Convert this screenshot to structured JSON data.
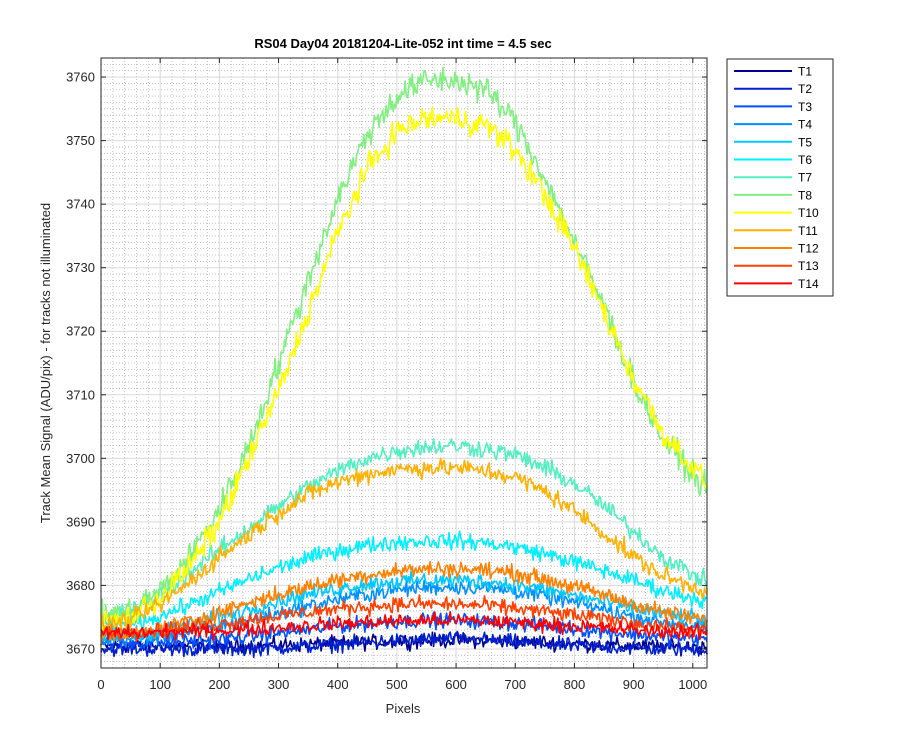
{
  "chart_data": {
    "type": "line",
    "title": "RS04 Day04 20181204-Lite-052 int time = 4.5 sec",
    "xlabel": "Pixels",
    "ylabel": "Track Mean Signal (ADU/pix) - for tracks not illuminated",
    "xlim": [
      0,
      1024
    ],
    "ylim": [
      3667,
      3763
    ],
    "xticks": [
      0,
      100,
      200,
      300,
      400,
      500,
      600,
      700,
      800,
      900,
      1000
    ],
    "yticks": [
      3670,
      3680,
      3690,
      3700,
      3710,
      3720,
      3730,
      3740,
      3750,
      3760
    ],
    "grid": "major and minor",
    "legend_location": "outside-right",
    "x": [
      0,
      50,
      100,
      150,
      200,
      250,
      300,
      350,
      400,
      450,
      500,
      550,
      600,
      650,
      700,
      750,
      800,
      850,
      900,
      950,
      1024
    ],
    "series": [
      {
        "name": "T1",
        "color": "#00008f",
        "values": [
          3670.5,
          3670.5,
          3670.5,
          3670.5,
          3670.5,
          3670.5,
          3670.6,
          3670.7,
          3670.9,
          3671.0,
          3671.2,
          3671.3,
          3671.4,
          3671.3,
          3671.1,
          3671.0,
          3670.8,
          3670.6,
          3670.5,
          3670.4,
          3670.3
        ]
      },
      {
        "name": "T2",
        "color": "#0020d0",
        "values": [
          3670.0,
          3670.0,
          3670.0,
          3670.0,
          3670.0,
          3670.0,
          3670.2,
          3670.4,
          3670.7,
          3671.0,
          3671.3,
          3671.5,
          3671.6,
          3671.4,
          3671.1,
          3670.8,
          3670.5,
          3670.3,
          3670.1,
          3670.0,
          3670.0
        ]
      },
      {
        "name": "T3",
        "color": "#0050ff",
        "values": [
          3671.0,
          3671.0,
          3671.0,
          3671.2,
          3671.5,
          3672.0,
          3672.5,
          3673.0,
          3673.6,
          3674.0,
          3674.3,
          3674.5,
          3674.5,
          3674.3,
          3674.0,
          3673.6,
          3673.2,
          3672.7,
          3672.3,
          3671.9,
          3671.5
        ]
      },
      {
        "name": "T4",
        "color": "#0090ff",
        "values": [
          3671.5,
          3671.6,
          3672.0,
          3672.6,
          3673.5,
          3674.5,
          3675.6,
          3676.7,
          3677.8,
          3678.6,
          3679.3,
          3679.7,
          3679.8,
          3679.6,
          3679.1,
          3678.3,
          3677.3,
          3676.2,
          3675.1,
          3674.2,
          3673.3
        ]
      },
      {
        "name": "T5",
        "color": "#00c8ff",
        "values": [
          3672.0,
          3672.2,
          3672.8,
          3673.8,
          3675.0,
          3676.3,
          3677.5,
          3678.6,
          3679.5,
          3680.2,
          3680.6,
          3680.8,
          3680.8,
          3680.6,
          3680.1,
          3679.3,
          3678.4,
          3677.4,
          3676.4,
          3675.5,
          3674.5
        ]
      },
      {
        "name": "T6",
        "color": "#00f0ff",
        "values": [
          3673.5,
          3674.0,
          3675.2,
          3677.0,
          3679.0,
          3681.0,
          3682.8,
          3684.3,
          3685.5,
          3686.3,
          3686.8,
          3687.0,
          3687.0,
          3686.7,
          3686.0,
          3685.0,
          3683.7,
          3682.3,
          3680.8,
          3679.2,
          3677.5
        ]
      },
      {
        "name": "T7",
        "color": "#50f0c0",
        "values": [
          3674.5,
          3676.0,
          3678.5,
          3682.0,
          3685.6,
          3689.0,
          3692.5,
          3695.5,
          3698.0,
          3700.0,
          3701.2,
          3701.8,
          3702.0,
          3701.5,
          3700.5,
          3698.5,
          3696.0,
          3692.5,
          3688.5,
          3684.5,
          3680.5
        ]
      },
      {
        "name": "T8",
        "color": "#80f080",
        "values": [
          3675.0,
          3676.0,
          3679.0,
          3684.5,
          3692.0,
          3702.0,
          3715.0,
          3728.0,
          3741.0,
          3751.0,
          3757.0,
          3759.5,
          3759.5,
          3758.0,
          3753.0,
          3744.0,
          3734.0,
          3724.0,
          3712.0,
          3703.0,
          3695.0
        ]
      },
      {
        "name": "T10",
        "color": "#ffff00",
        "values": [
          3674.0,
          3675.0,
          3678.0,
          3683.0,
          3690.0,
          3700.0,
          3710.5,
          3723.0,
          3735.5,
          3745.5,
          3751.5,
          3753.5,
          3753.5,
          3752.5,
          3748.5,
          3741.5,
          3733.0,
          3723.0,
          3712.5,
          3704.0,
          3696.0
        ]
      },
      {
        "name": "T11",
        "color": "#ffb000",
        "values": [
          3673.5,
          3674.5,
          3677.0,
          3680.5,
          3684.5,
          3688.0,
          3691.5,
          3694.3,
          3696.3,
          3697.5,
          3698.3,
          3698.5,
          3698.5,
          3698.0,
          3697.0,
          3694.8,
          3691.8,
          3688.2,
          3684.5,
          3681.5,
          3679.0
        ]
      },
      {
        "name": "T12",
        "color": "#ff8000",
        "values": [
          3672.0,
          3672.3,
          3673.2,
          3674.4,
          3675.8,
          3677.3,
          3678.6,
          3679.8,
          3680.9,
          3681.7,
          3682.3,
          3682.6,
          3682.6,
          3682.4,
          3681.9,
          3681.0,
          3679.8,
          3678.5,
          3677.1,
          3675.8,
          3674.5
        ]
      },
      {
        "name": "T13",
        "color": "#ff4000",
        "values": [
          3672.5,
          3672.7,
          3673.0,
          3673.5,
          3674.0,
          3674.6,
          3675.2,
          3675.8,
          3676.3,
          3676.7,
          3677.0,
          3677.1,
          3677.0,
          3676.8,
          3676.4,
          3675.9,
          3675.3,
          3674.7,
          3674.1,
          3673.5,
          3672.9
        ]
      },
      {
        "name": "T14",
        "color": "#ff0000",
        "values": [
          3672.5,
          3672.5,
          3672.6,
          3672.7,
          3672.9,
          3673.1,
          3673.4,
          3673.7,
          3674.0,
          3674.2,
          3674.4,
          3674.5,
          3674.5,
          3674.4,
          3674.2,
          3673.9,
          3673.6,
          3673.3,
          3673.0,
          3672.8,
          3672.6
        ]
      }
    ]
  }
}
